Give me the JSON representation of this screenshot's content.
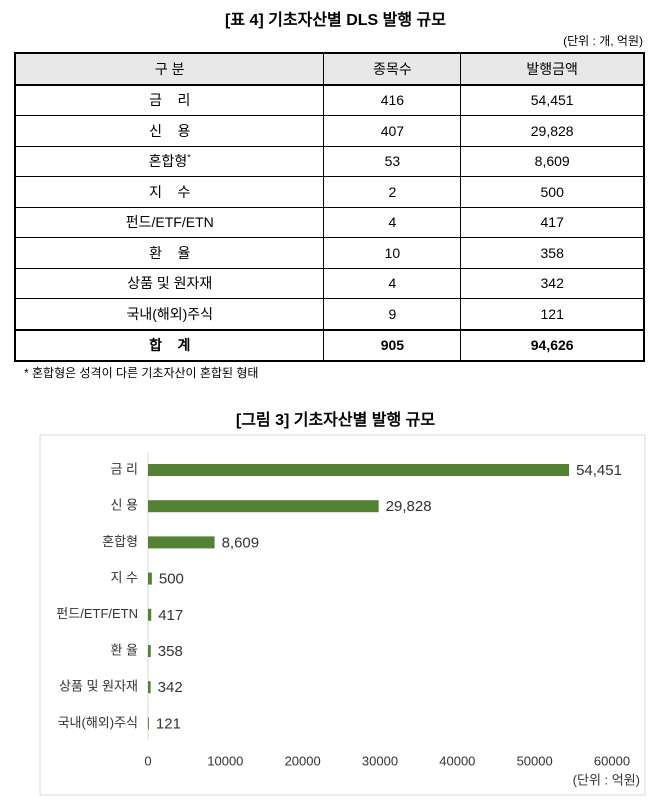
{
  "table_title": "[표 4] 기초자산별 DLS 발행 규모",
  "unit_note": "(단위 : 개, 억원)",
  "table": {
    "header": [
      "구  분",
      "종목수",
      "발행금액"
    ],
    "rows": [
      {
        "name": "금    리",
        "count": "416",
        "amount": "54,451"
      },
      {
        "name": "신    용",
        "count": "407",
        "amount": "29,828"
      },
      {
        "name": "혼합형",
        "mark": "*",
        "count": "53",
        "amount": "8,609"
      },
      {
        "name": "지    수",
        "count": "2",
        "amount": "500"
      },
      {
        "name": "펀드/ETF/ETN",
        "count": "4",
        "amount": "417"
      },
      {
        "name": "환    율",
        "count": "10",
        "amount": "358"
      },
      {
        "name": "상품 및 원자재",
        "count": "4",
        "amount": "342"
      },
      {
        "name": "국내(해외)주식",
        "count": "9",
        "amount": "121"
      }
    ],
    "total": {
      "name": "합    계",
      "count": "905",
      "amount": "94,626"
    }
  },
  "footnote": "* 혼합형은 성격이 다른 기초자산이 혼합된 형태",
  "chart_data": {
    "type": "bar",
    "orientation": "horizontal",
    "title": "[그림 3] 기초자산별 발행 규모",
    "unit_label": "(단위 : 억원)",
    "categories": [
      "금 리",
      "신 용",
      "혼합형",
      "지 수",
      "펀드/ETF/ETN",
      "환 율",
      "상품 및 원자재",
      "국내(해외)주식"
    ],
    "values": [
      54451,
      29828,
      8609,
      500,
      417,
      358,
      342,
      121
    ],
    "value_labels": [
      "54,451",
      "29,828",
      "8,609",
      "500",
      "417",
      "358",
      "342",
      "121"
    ],
    "color": "#548235",
    "xlim": [
      0,
      60000
    ],
    "xticks": [
      0,
      10000,
      20000,
      30000,
      40000,
      50000,
      60000
    ]
  }
}
